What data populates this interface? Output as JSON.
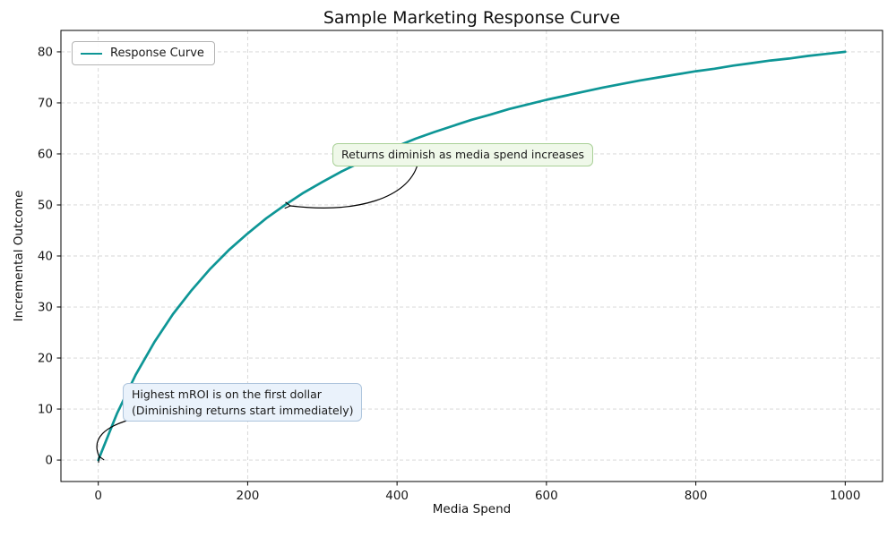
{
  "chart_data": {
    "type": "line",
    "title": "Sample Marketing Response Curve",
    "xlabel": "Media Spend",
    "ylabel": "Incremental Outcome",
    "grid": true,
    "legend_position": "upper left",
    "legend": [
      "Response Curve"
    ],
    "line_color": "#0e9696",
    "x_ticks": [
      0,
      200,
      400,
      600,
      800,
      1000
    ],
    "y_ticks": [
      0,
      10,
      20,
      30,
      40,
      50,
      60,
      70,
      80
    ],
    "xlim": [
      -50,
      1050
    ],
    "ylim": [
      -4.2,
      84.2
    ],
    "series": [
      {
        "name": "Response Curve",
        "x": [
          0,
          25,
          50,
          75,
          100,
          125,
          150,
          175,
          200,
          225,
          250,
          275,
          300,
          325,
          350,
          375,
          400,
          425,
          450,
          475,
          500,
          525,
          550,
          575,
          600,
          625,
          650,
          675,
          700,
          725,
          750,
          775,
          800,
          825,
          850,
          875,
          900,
          925,
          950,
          975,
          1000
        ],
        "y": [
          0,
          9.1,
          16.7,
          23.1,
          28.6,
          33.3,
          37.5,
          41.2,
          44.4,
          47.4,
          50,
          52.4,
          54.5,
          56.5,
          58.3,
          60,
          61.5,
          63,
          64.3,
          65.5,
          66.7,
          67.7,
          68.8,
          69.7,
          70.6,
          71.4,
          72.2,
          73,
          73.7,
          74.4,
          75,
          75.6,
          76.2,
          76.7,
          77.3,
          77.8,
          78.3,
          78.7,
          79.2,
          79.6,
          80
        ]
      }
    ],
    "annotations": [
      {
        "text": "Returns diminish as media spend increases",
        "target_xy": [
          250,
          50
        ],
        "box_color": "#eff8e9",
        "border_color": "#a9d097"
      },
      {
        "text": "Highest mROI is on the first dollar\n(Diminishing returns start immediately)",
        "target_xy": [
          0,
          0
        ],
        "box_color": "#eaf2fb",
        "border_color": "#aec5dd"
      }
    ]
  }
}
